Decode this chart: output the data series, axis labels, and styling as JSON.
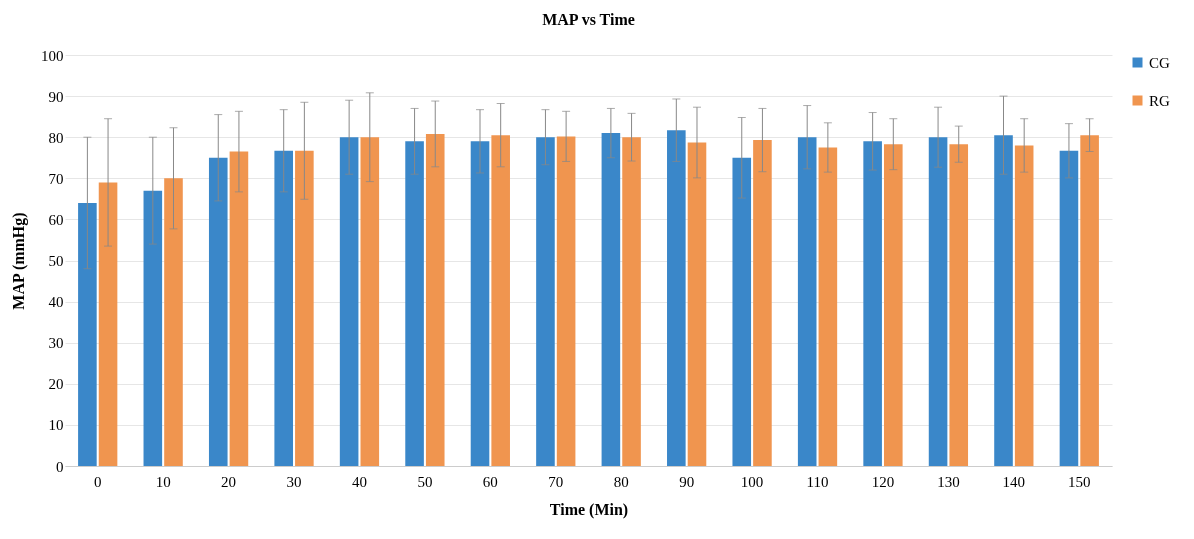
{
  "chart_data": {
    "type": "bar",
    "title": "MAP vs Time",
    "xlabel": "Time (Min)",
    "ylabel": "MAP (mmHg)",
    "categories": [
      "0",
      "10",
      "20",
      "30",
      "40",
      "50",
      "60",
      "70",
      "80",
      "90",
      "100",
      "110",
      "120",
      "130",
      "140",
      "150"
    ],
    "series": [
      {
        "name": "CG",
        "color": "#3a87c9",
        "values": [
          64,
          67,
          75,
          76.7,
          80,
          79,
          79,
          80,
          81,
          81.7,
          75,
          80,
          79,
          80,
          80.5,
          76.7
        ],
        "errors": [
          16,
          13,
          10.5,
          10,
          9,
          8,
          7.7,
          6.7,
          6,
          7.6,
          9.8,
          7.7,
          7,
          7.3,
          9.5,
          6.6
        ]
      },
      {
        "name": "RG",
        "color": "#f0954f",
        "values": [
          69,
          70,
          76.5,
          76.7,
          80,
          80.8,
          80.5,
          80.2,
          80,
          78.7,
          79.3,
          77.5,
          78.3,
          78.3,
          78,
          80.5
        ],
        "errors": [
          15.5,
          12.3,
          9.8,
          11.8,
          10.8,
          8,
          7.7,
          6.1,
          5.8,
          8.6,
          7.7,
          6,
          6.2,
          4.4,
          6.5,
          4
        ]
      }
    ],
    "ylim": [
      0,
      100
    ],
    "yticks": [
      0,
      10,
      20,
      30,
      40,
      50,
      60,
      70,
      80,
      90,
      100
    ],
    "grid": "y",
    "legend": "top right"
  }
}
